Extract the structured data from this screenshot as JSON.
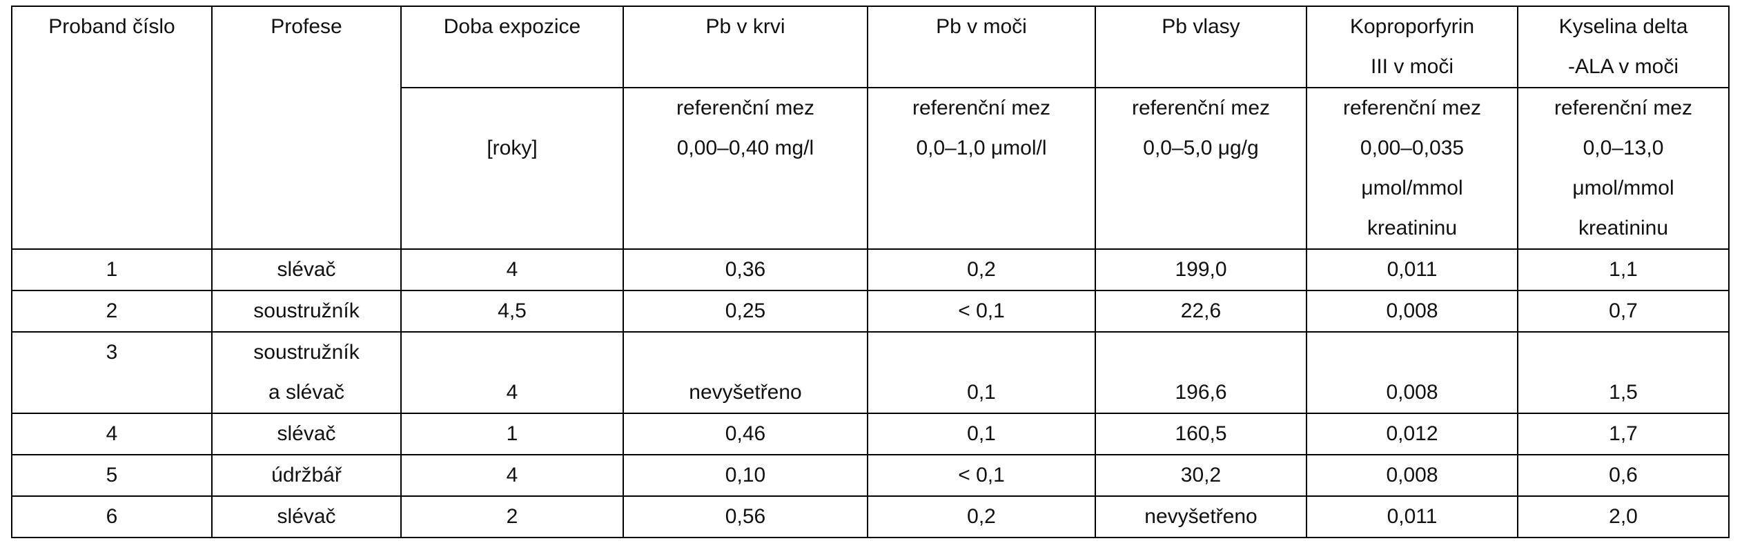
{
  "table": {
    "header": [
      [
        "Proband číslo"
      ],
      [
        "Profese"
      ],
      [
        "Doba expozice"
      ],
      [
        "Pb v krvi"
      ],
      [
        "Pb v moči"
      ],
      [
        "Pb vlasy"
      ],
      [
        "Koproporfyrin",
        "III v moči"
      ],
      [
        "Kyselina delta",
        "-ALA v moči"
      ]
    ],
    "units": [
      [
        "[roky]"
      ],
      [
        "referenční mez",
        "0,00–0,40 mg/l"
      ],
      [
        "referenční mez",
        "0,0–1,0 μmol/l"
      ],
      [
        "referenční mez",
        "0,0–5,0 μg/g"
      ],
      [
        "referenční mez",
        "0,00–0,035",
        "μmol/mmol",
        "kreatininu"
      ],
      [
        "referenční mez",
        "0,0–13,0",
        "μmol/mmol",
        "kreatininu"
      ]
    ],
    "rows": [
      [
        [
          "1"
        ],
        [
          "slévač"
        ],
        [
          "4"
        ],
        [
          "0,36"
        ],
        [
          "0,2"
        ],
        [
          "199,0"
        ],
        [
          "0,011"
        ],
        [
          "1,1"
        ]
      ],
      [
        [
          "2"
        ],
        [
          "soustružník"
        ],
        [
          "4,5"
        ],
        [
          "0,25"
        ],
        [
          "< 0,1"
        ],
        [
          "22,6"
        ],
        [
          "0,008"
        ],
        [
          "0,7"
        ]
      ],
      [
        [
          "3"
        ],
        [
          "soustružník",
          "a slévač"
        ],
        [
          "4"
        ],
        [
          "nevyšetřeno"
        ],
        [
          "0,1"
        ],
        [
          "196,6"
        ],
        [
          "0,008"
        ],
        [
          "1,5"
        ]
      ],
      [
        [
          "4"
        ],
        [
          "slévač"
        ],
        [
          "1"
        ],
        [
          "0,46"
        ],
        [
          "0,1"
        ],
        [
          "160,5"
        ],
        [
          "0,012"
        ],
        [
          "1,7"
        ]
      ],
      [
        [
          "5"
        ],
        [
          "údržbář"
        ],
        [
          "4"
        ],
        [
          "0,10"
        ],
        [
          "< 0,1"
        ],
        [
          "30,2"
        ],
        [
          "0,008"
        ],
        [
          "0,6"
        ]
      ],
      [
        [
          "6"
        ],
        [
          "slévač"
        ],
        [
          "2"
        ],
        [
          "0,56"
        ],
        [
          "0,2"
        ],
        [
          "nevyšetřeno"
        ],
        [
          "0,011"
        ],
        [
          "2,0"
        ]
      ]
    ]
  }
}
